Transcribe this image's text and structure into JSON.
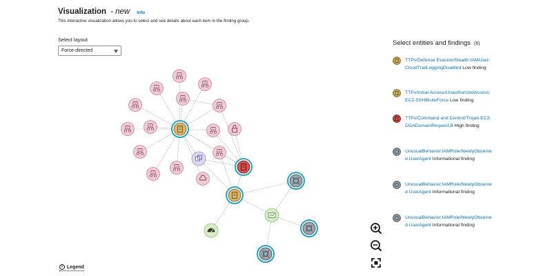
{
  "header": {
    "title": "Visualization",
    "state": "- new",
    "info_label": "Info",
    "description": "This interactive visualization allows you to select and see details about each item in the finding group."
  },
  "layout": {
    "label": "Select layout",
    "selected": "Force-directed"
  },
  "legend": {
    "label": "Legend",
    "icon_text": "i"
  },
  "panel": {
    "title": "Select entities and findings",
    "count": "(6)",
    "findings": [
      {
        "link": "TTPs/Defense Evasion/Stealth:IAMUser-CloudTrailLoggingDisabled",
        "severity": "Low finding",
        "color": "#d6b66b",
        "stroke": "#8a6d1e"
      },
      {
        "link": "TTPs/Initial Access/UnauthorizedAccess:EC2-SSHBruteForce",
        "severity": "Low finding",
        "color": "#d6b66b",
        "stroke": "#8a6d1e"
      },
      {
        "link": "TTPs/Command and Control/Trojan:EC2-DGADomainRequest.B",
        "severity": "High finding",
        "color": "#d9534f",
        "stroke": "#7a1f1b"
      },
      {
        "link": "UnusualBehavior:IAMRole/NewlyObserved.UserAgent",
        "severity": "Informational finding",
        "color": "#9aa5ad",
        "stroke": "#4f5a63"
      },
      {
        "link": "UnusualBehavior:IAMRole/NewlyObserved.UserAgent",
        "severity": "Informational finding",
        "color": "#9aa5ad",
        "stroke": "#4f5a63"
      },
      {
        "link": "UnusualBehavior:IAMRole/NewlyObserved.UserAgent",
        "severity": "Informational finding",
        "color": "#9aa5ad",
        "stroke": "#4f5a63"
      }
    ]
  },
  "zoom": {
    "zoom_in": "zoom-in-icon",
    "zoom_out": "zoom-out-icon",
    "fit": "fit-view-icon"
  },
  "graph": {
    "colors": {
      "resource_fill": "#f3c9d3",
      "resource_stroke": "#c0879a",
      "finding_ring": "#1fa4c9",
      "edge": "#9aa0a6"
    }
  }
}
